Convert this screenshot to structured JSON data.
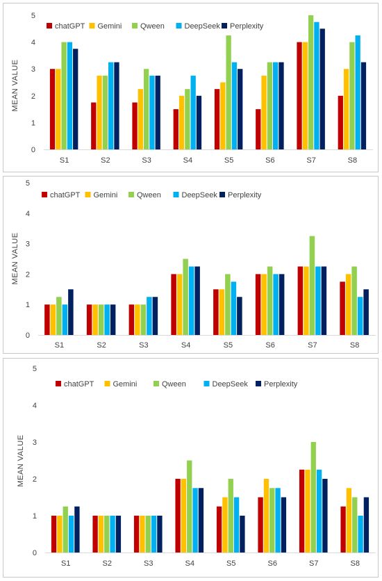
{
  "colors": {
    "chatGPT": "#C00000",
    "Gemini": "#FFC000",
    "Qween": "#92D050",
    "DeepSeek": "#00B0F0",
    "Perplexity": "#002060"
  },
  "chart_data": [
    {
      "type": "bar",
      "title": "",
      "xlabel": "",
      "ylabel": "MEAN VALUE",
      "ylim": [
        0,
        5
      ],
      "yticks": [
        "0",
        "1",
        "2",
        "3",
        "4",
        "5"
      ],
      "grid": false,
      "legend": "top",
      "categories": [
        "S1",
        "S2",
        "S3",
        "S4",
        "S5",
        "S6",
        "S7",
        "S8"
      ],
      "series": [
        {
          "name": "chatGPT",
          "values": [
            3,
            1.75,
            1.75,
            1.5,
            2.25,
            1.5,
            4,
            2
          ]
        },
        {
          "name": "Gemini",
          "values": [
            3,
            2.75,
            2.25,
            2,
            2.5,
            2.75,
            4,
            3
          ]
        },
        {
          "name": "Qween",
          "values": [
            4,
            2.75,
            3,
            2.25,
            4.25,
            3.25,
            5,
            4
          ]
        },
        {
          "name": "DeepSeek",
          "values": [
            4,
            3.25,
            2.75,
            2.75,
            3.25,
            3.25,
            4.75,
            4.25
          ]
        },
        {
          "name": "Perplexity",
          "values": [
            3.75,
            3.25,
            2.75,
            2,
            3,
            3.25,
            4.5,
            3.25
          ]
        }
      ]
    },
    {
      "type": "bar",
      "title": "",
      "xlabel": "",
      "ylabel": "MEAN VALUE",
      "ylim": [
        0,
        5
      ],
      "yticks": [
        "0",
        "1",
        "2",
        "3",
        "4",
        "5"
      ],
      "grid": false,
      "legend": "top",
      "categories": [
        "S1",
        "S2",
        "S3",
        "S4",
        "S5",
        "S6",
        "S7",
        "S8"
      ],
      "series": [
        {
          "name": "chatGPT",
          "values": [
            1,
            1,
            1,
            2,
            1.5,
            2,
            2.25,
            1.75
          ]
        },
        {
          "name": "Gemini",
          "values": [
            1,
            1,
            1,
            2,
            1.5,
            2,
            2.25,
            2
          ]
        },
        {
          "name": "Qween",
          "values": [
            1.25,
            1,
            1,
            2.5,
            2,
            2.25,
            3.25,
            2.25
          ]
        },
        {
          "name": "DeepSeek",
          "values": [
            1,
            1,
            1.25,
            2.25,
            1.75,
            2,
            2.25,
            1.25
          ]
        },
        {
          "name": "Perplexity",
          "values": [
            1.5,
            1,
            1.25,
            2.25,
            1.25,
            2,
            2.25,
            1.5
          ]
        }
      ]
    },
    {
      "type": "bar",
      "title": "",
      "xlabel": "",
      "ylabel": "MEAN VALUE",
      "ylim": [
        0,
        5
      ],
      "yticks": [
        "0",
        "1",
        "2",
        "3",
        "4",
        "5"
      ],
      "grid": false,
      "legend": "top",
      "categories": [
        "S1",
        "S2",
        "S3",
        "S4",
        "S5",
        "S6",
        "S7",
        "S8"
      ],
      "series": [
        {
          "name": "chatGPT",
          "values": [
            1,
            1,
            1,
            2,
            1.25,
            1.5,
            2.25,
            1.25
          ]
        },
        {
          "name": "Gemini",
          "values": [
            1,
            1,
            1,
            2,
            1.5,
            2,
            2.25,
            1.75
          ]
        },
        {
          "name": "Qween",
          "values": [
            1.25,
            1,
            1,
            2.5,
            2,
            1.75,
            3,
            1.5
          ]
        },
        {
          "name": "DeepSeek",
          "values": [
            1,
            1,
            1,
            1.75,
            1.5,
            1.75,
            2.25,
            1
          ]
        },
        {
          "name": "Perplexity",
          "values": [
            1.25,
            1,
            1,
            1.75,
            1,
            1.5,
            2,
            1.5
          ]
        }
      ]
    }
  ]
}
